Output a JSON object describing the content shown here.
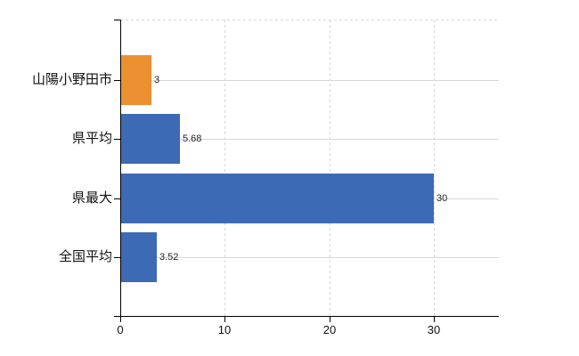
{
  "chart_data": {
    "type": "bar",
    "orientation": "horizontal",
    "title": "",
    "xlabel": "",
    "ylabel": "",
    "legend": "none",
    "categories": [
      "山陽小野田市",
      "県平均",
      "県最大",
      "全国平均"
    ],
    "values": [
      3,
      5.68,
      30,
      3.52
    ],
    "value_labels": [
      "3",
      "5.68",
      "30",
      "3.52"
    ],
    "bar_colors": [
      "#eb9031",
      "#3d6ab4",
      "#3d6ab4",
      "#3d6ab4"
    ],
    "x_ticks": [
      "0",
      "10",
      "20",
      "30"
    ],
    "x_tick_values": [
      0,
      10,
      20,
      30
    ],
    "xlim": [
      0,
      36.2
    ],
    "grid": "dashed vertical gridlines at x ticks, dashed top border, solid light horizontal line at each category center"
  },
  "colors": {
    "background": "#ffffff",
    "axis": "#000000",
    "gridline": "#d7d7d7",
    "category_text": "#111111",
    "tick_text": "#111111",
    "value_text": "#222222",
    "bar_orange": "#eb9031",
    "bar_blue": "#3d6ab4"
  }
}
